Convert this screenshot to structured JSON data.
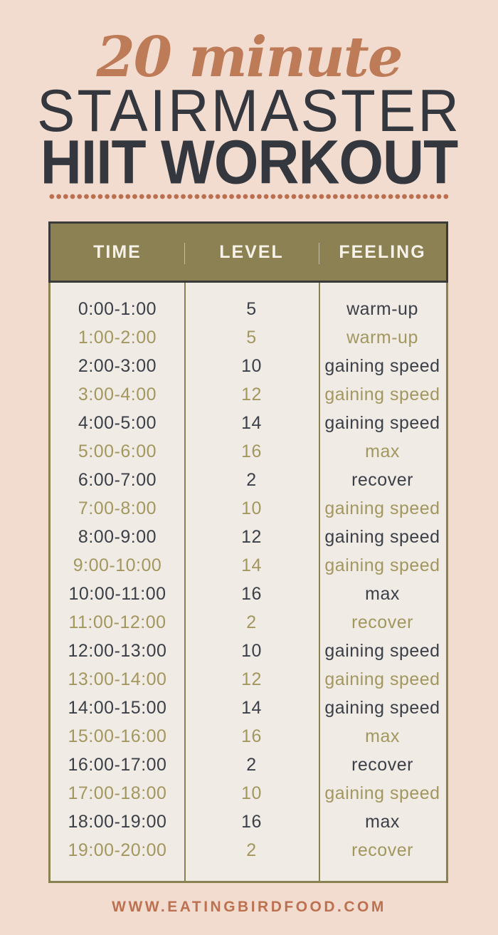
{
  "page": {
    "background_color": "#f2dcd0"
  },
  "title": {
    "script_line": "20 minute",
    "line2": "STAIRMASTER",
    "line3": "HIIT WORKOUT",
    "script_color": "#bd7b57",
    "heading_color": "#34373d"
  },
  "divider": {
    "dot_color": "#bc6f4f"
  },
  "table": {
    "columns": [
      "TIME",
      "LEVEL",
      "FEELING"
    ],
    "header_bg_color": "#8b8152",
    "header_text_color": "#f6f2e9",
    "header_border_color": "#3a3a38",
    "body_bg_color": "#f0ebe4",
    "body_border_color": "#8a8150",
    "row_text_color_dark": "#3b3f48",
    "row_text_color_olive": "#a39760",
    "rows": [
      {
        "time": "0:00-1:00",
        "level": "5",
        "feeling": "warm-up"
      },
      {
        "time": "1:00-2:00",
        "level": "5",
        "feeling": "warm-up"
      },
      {
        "time": "2:00-3:00",
        "level": "10",
        "feeling": "gaining speed"
      },
      {
        "time": "3:00-4:00",
        "level": "12",
        "feeling": "gaining speed"
      },
      {
        "time": "4:00-5:00",
        "level": "14",
        "feeling": "gaining speed"
      },
      {
        "time": "5:00-6:00",
        "level": "16",
        "feeling": "max"
      },
      {
        "time": "6:00-7:00",
        "level": "2",
        "feeling": "recover"
      },
      {
        "time": "7:00-8:00",
        "level": "10",
        "feeling": "gaining speed"
      },
      {
        "time": "8:00-9:00",
        "level": "12",
        "feeling": "gaining speed"
      },
      {
        "time": "9:00-10:00",
        "level": "14",
        "feeling": "gaining speed"
      },
      {
        "time": "10:00-11:00",
        "level": "16",
        "feeling": "max"
      },
      {
        "time": "11:00-12:00",
        "level": "2",
        "feeling": "recover"
      },
      {
        "time": "12:00-13:00",
        "level": "10",
        "feeling": "gaining speed"
      },
      {
        "time": "13:00-14:00",
        "level": "12",
        "feeling": "gaining speed"
      },
      {
        "time": "14:00-15:00",
        "level": "14",
        "feeling": "gaining speed"
      },
      {
        "time": "15:00-16:00",
        "level": "16",
        "feeling": "max"
      },
      {
        "time": "16:00-17:00",
        "level": "2",
        "feeling": "recover"
      },
      {
        "time": "17:00-18:00",
        "level": "10",
        "feeling": "gaining speed"
      },
      {
        "time": "18:00-19:00",
        "level": "16",
        "feeling": "max"
      },
      {
        "time": "19:00-20:00",
        "level": "2",
        "feeling": "recover"
      }
    ]
  },
  "footer": {
    "website": "WWW.EATINGBIRDFOOD.COM",
    "color": "#bc7150"
  },
  "chart_data": {
    "type": "table",
    "title": "20 Minute Stairmaster HIIT Workout",
    "columns": [
      "TIME",
      "LEVEL",
      "FEELING"
    ],
    "rows": [
      [
        "0:00-1:00",
        5,
        "warm-up"
      ],
      [
        "1:00-2:00",
        5,
        "warm-up"
      ],
      [
        "2:00-3:00",
        10,
        "gaining speed"
      ],
      [
        "3:00-4:00",
        12,
        "gaining speed"
      ],
      [
        "4:00-5:00",
        14,
        "gaining speed"
      ],
      [
        "5:00-6:00",
        16,
        "max"
      ],
      [
        "6:00-7:00",
        2,
        "recover"
      ],
      [
        "7:00-8:00",
        10,
        "gaining speed"
      ],
      [
        "8:00-9:00",
        12,
        "gaining speed"
      ],
      [
        "9:00-10:00",
        14,
        "gaining speed"
      ],
      [
        "10:00-11:00",
        16,
        "max"
      ],
      [
        "11:00-12:00",
        2,
        "recover"
      ],
      [
        "12:00-13:00",
        10,
        "gaining speed"
      ],
      [
        "13:00-14:00",
        12,
        "gaining speed"
      ],
      [
        "14:00-15:00",
        14,
        "gaining speed"
      ],
      [
        "15:00-16:00",
        16,
        "max"
      ],
      [
        "16:00-17:00",
        2,
        "recover"
      ],
      [
        "17:00-18:00",
        10,
        "gaining speed"
      ],
      [
        "18:00-19:00",
        16,
        "max"
      ],
      [
        "19:00-20:00",
        2,
        "recover"
      ]
    ]
  }
}
